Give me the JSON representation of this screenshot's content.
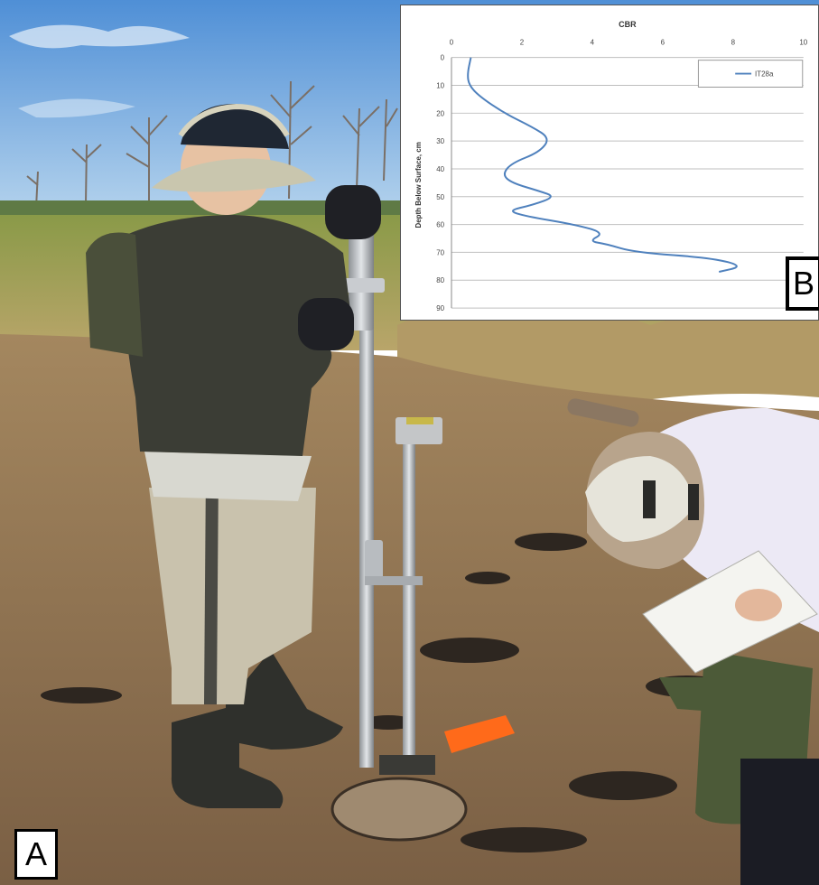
{
  "labels": {
    "panel_a": "A",
    "panel_b": "B"
  },
  "photo": {
    "sky_color": "#6aa5dc",
    "marsh_grass_color": "#9aa24e",
    "mud_color": "#8f7152",
    "instrument_color": "#b8bcc0",
    "flag_color": "#ff6a1a",
    "boot_color": "#2f302c",
    "waders_color": "#c9c2ad",
    "jacket_color": "#3b3d35"
  },
  "chart_data": {
    "type": "line",
    "title": "CBR",
    "ylabel": "Depth Below Surface, cm",
    "xlabel": "",
    "xlim": [
      0,
      10
    ],
    "ylim": [
      90,
      0
    ],
    "xticks": [
      "0",
      "2",
      "4",
      "6",
      "8",
      "10"
    ],
    "yticks": [
      "0",
      "10",
      "20",
      "30",
      "40",
      "50",
      "60",
      "70",
      "80",
      "90"
    ],
    "grid": "horizontal",
    "legend_position": "top-right",
    "series": [
      {
        "name": "IT28a",
        "color": "#4f81bd",
        "x": [
          0.55,
          0.45,
          0.5,
          0.8,
          1.5,
          2.3,
          2.8,
          2.5,
          1.7,
          1.45,
          1.7,
          2.5,
          2.95,
          2.3,
          1.6,
          2.1,
          3.5,
          4.35,
          3.9,
          4.4,
          5.2,
          7.4,
          8.3,
          7.6
        ],
        "y": [
          0,
          6,
          10,
          14,
          20,
          25,
          29,
          34,
          38,
          42,
          45,
          48,
          50,
          53,
          55,
          57,
          60,
          63,
          66,
          67,
          70,
          72,
          75,
          77
        ]
      }
    ]
  }
}
